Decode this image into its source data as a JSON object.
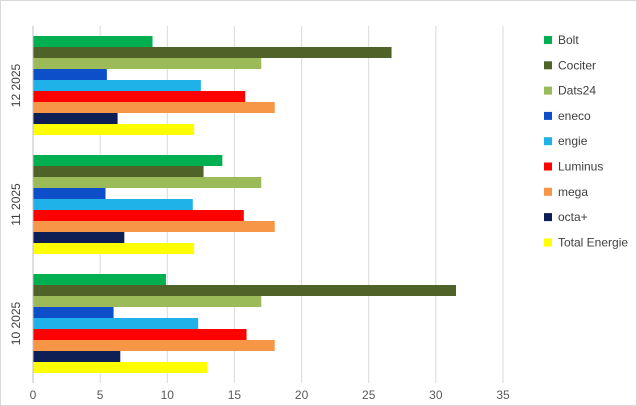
{
  "chart_data": {
    "type": "bar",
    "orientation": "horizontal",
    "categories": [
      "10 2025",
      "11 2025",
      "12 2025"
    ],
    "xlim": [
      0,
      35
    ],
    "xticks": [
      0,
      5,
      10,
      15,
      20,
      25,
      30,
      35
    ],
    "grid": true,
    "legend_position": "right",
    "series": [
      {
        "name": "Bolt",
        "color": "#00b050",
        "values": [
          9.9,
          14.1,
          8.9
        ]
      },
      {
        "name": "Cociter",
        "color": "#4f6228",
        "values": [
          31.5,
          12.7,
          26.7
        ]
      },
      {
        "name": "Dats24",
        "color": "#9bbb59",
        "values": [
          17.0,
          17.0,
          17.0
        ]
      },
      {
        "name": "eneco",
        "color": "#0d4fc8",
        "values": [
          6.0,
          5.4,
          5.5
        ]
      },
      {
        "name": "engie",
        "color": "#1fb2e8",
        "values": [
          12.3,
          11.9,
          12.5
        ]
      },
      {
        "name": "Luminus",
        "color": "#ff0000",
        "values": [
          15.9,
          15.7,
          15.8
        ]
      },
      {
        "name": "mega",
        "color": "#f79646",
        "values": [
          18.0,
          18.0,
          18.0
        ]
      },
      {
        "name": "octa+",
        "color": "#0e1f55",
        "values": [
          6.5,
          6.8,
          6.3
        ]
      },
      {
        "name": "Total Energie",
        "color": "#ffff00",
        "values": [
          13.0,
          12.0,
          12.0
        ]
      }
    ]
  }
}
